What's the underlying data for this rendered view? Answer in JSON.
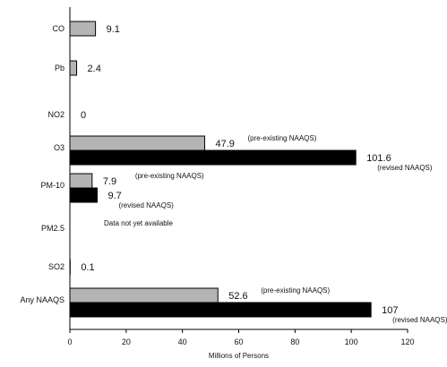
{
  "chart_data": {
    "type": "bar",
    "orientation": "horizontal",
    "xlabel": "Millions of Persons",
    "xlim": [
      0,
      120
    ],
    "xticks": [
      "0",
      "20",
      "40",
      "60",
      "80",
      "100",
      "120"
    ],
    "grid": false,
    "colors": {
      "pre_existing": "#b4b4b4",
      "revised": "#000000",
      "edge": "#000000"
    },
    "categories": [
      {
        "label": "CO",
        "bars": [
          {
            "value": 9.1,
            "kind": "pre_existing",
            "label": "9.1"
          }
        ]
      },
      {
        "label": "Pb",
        "bars": [
          {
            "value": 2.4,
            "kind": "pre_existing",
            "label": "2.4"
          }
        ]
      },
      {
        "label": "NO2",
        "bars": [
          {
            "value": 0,
            "kind": "pre_existing",
            "label": "0"
          }
        ]
      },
      {
        "label": "O3",
        "bars": [
          {
            "value": 47.9,
            "kind": "pre_existing",
            "label": "47.9",
            "note": "(pre-existing NAAQS)"
          },
          {
            "value": 101.6,
            "kind": "revised",
            "label": "101.6",
            "note": "(revised NAAQS)"
          }
        ]
      },
      {
        "label": "PM-10",
        "bars": [
          {
            "value": 7.9,
            "kind": "pre_existing",
            "label": "7.9",
            "note": "(pre-existing NAAQS)"
          },
          {
            "value": 9.7,
            "kind": "revised",
            "label": "9.7",
            "note": "(revised NAAQS)"
          }
        ]
      },
      {
        "label": "PM2.5",
        "bars": [],
        "message": "Data not yet available"
      },
      {
        "label": "SO2",
        "bars": [
          {
            "value": 0.1,
            "kind": "pre_existing",
            "label": "0.1"
          }
        ]
      },
      {
        "label": "Any NAAQS",
        "bars": [
          {
            "value": 52.6,
            "kind": "pre_existing",
            "label": "52.6",
            "note": "(pre-existing NAAQS)"
          },
          {
            "value": 107,
            "kind": "revised",
            "label": "107",
            "note": "(revised NAAQS)"
          }
        ]
      }
    ]
  }
}
